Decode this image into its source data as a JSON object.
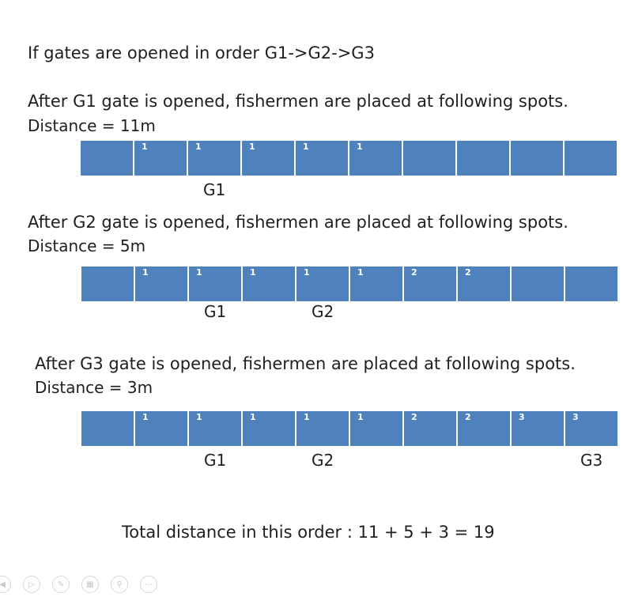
{
  "heading": "If gates are opened in order G1->G2->G3",
  "sections": [
    {
      "caption": "After G1 gate is opened, fishermen are placed at following spots.",
      "distance": "Distance = 11m",
      "cells": [
        "",
        "1",
        "1",
        "1",
        "1",
        "1",
        "",
        "",
        "",
        ""
      ],
      "gates": [
        {
          "label": "G1",
          "cell": 3
        }
      ]
    },
    {
      "caption": "After G2 gate is opened, fishermen are placed at following spots.",
      "distance": "Distance = 5m",
      "cells": [
        "",
        "1",
        "1",
        "1",
        "1",
        "1",
        "2",
        "2",
        "",
        ""
      ],
      "gates": [
        {
          "label": "G1",
          "cell": 3
        },
        {
          "label": "G2",
          "cell": 5
        }
      ]
    },
    {
      "caption": "After G3 gate is opened, fishermen are placed at following spots.",
      "distance": "Distance = 3m",
      "cells": [
        "",
        "1",
        "1",
        "1",
        "1",
        "1",
        "2",
        "2",
        "3",
        "3"
      ],
      "gates": [
        {
          "label": "G1",
          "cell": 3
        },
        {
          "label": "G2",
          "cell": 5
        },
        {
          "label": "G3",
          "cell": 10
        }
      ]
    }
  ],
  "total": "Total distance in this order : 11 + 5 + 3 = 19",
  "slide_controls": [
    {
      "name": "previous-slide-icon",
      "glyph": "◀"
    },
    {
      "name": "next-slide-icon",
      "glyph": "▷"
    },
    {
      "name": "pen-icon",
      "glyph": "✎"
    },
    {
      "name": "see-all-slides-icon",
      "glyph": "▦"
    },
    {
      "name": "zoom-icon",
      "glyph": "⚲"
    },
    {
      "name": "more-options-icon",
      "glyph": "⋯"
    }
  ]
}
